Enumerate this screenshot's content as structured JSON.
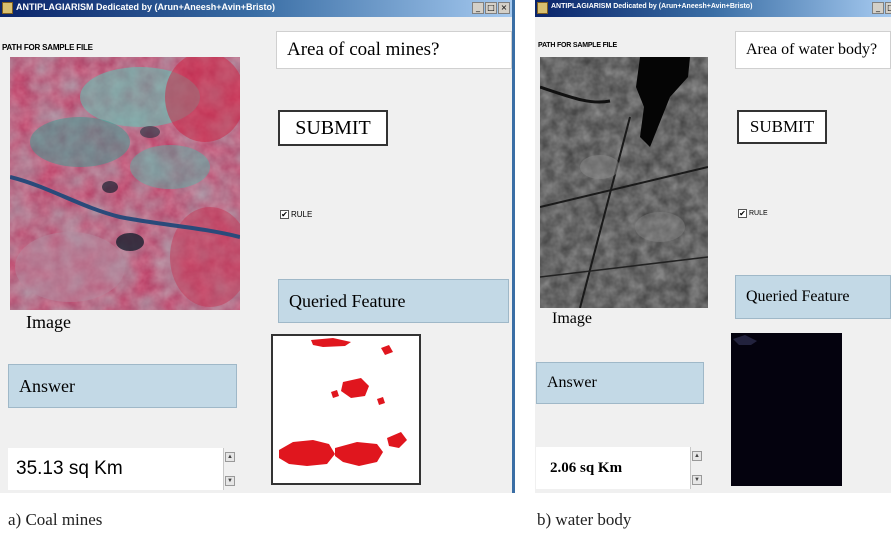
{
  "panel_a": {
    "title": "ANTIPLAGIARISM Dedicated by (Arun+Aneesh+Avin+Bristo)",
    "window_buttons": [
      "_",
      "□",
      "×"
    ],
    "path_label": "PATH FOR SAMPLE FILE",
    "question": "Area of coal mines?",
    "submit_label": "SUBMIT",
    "rule_label": "RULE",
    "rule_checked": true,
    "queried_feature_label": "Queried Feature",
    "image_label": "Image",
    "answer_label": "Answer",
    "answer_value": "35.13 sq Km"
  },
  "panel_b": {
    "title": "ANTIPLAGIARISM Dedicated by (Arun+Aneesh+Avin+Bristo)",
    "path_label": "PATH FOR SAMPLE FILE",
    "question": "Area of water body?",
    "submit_label": "SUBMIT",
    "rule_label": "RULE",
    "rule_checked": true,
    "queried_feature_label": "Queried Feature",
    "image_label": "Image",
    "answer_label": "Answer",
    "answer_value": "2.06 sq Km"
  },
  "captions": {
    "a": "a) Coal mines",
    "b": "b) water body"
  },
  "colors": {
    "titlebar": "#0a246a",
    "blue_button": "#c3d9e6",
    "coal_highlight": "#e0161e",
    "water_result_bg": "#04020e"
  }
}
